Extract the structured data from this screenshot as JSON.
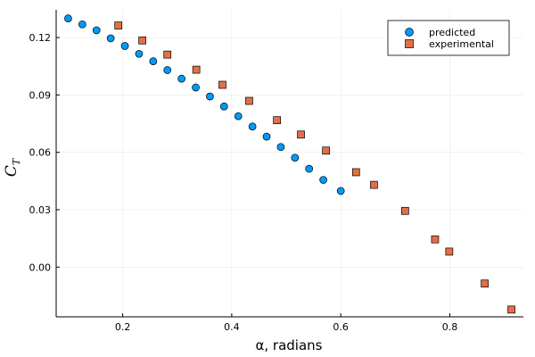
{
  "chart_data": {
    "type": "scatter",
    "title": "",
    "xlabel": "α, radians",
    "ylabel": "C",
    "ylabel_subscript": "T",
    "xlim": [
      0.078,
      0.935
    ],
    "ylim": [
      -0.026,
      0.1345
    ],
    "xticks": [
      {
        "value": 0.2,
        "label": "0.2"
      },
      {
        "value": 0.4,
        "label": "0.4"
      },
      {
        "value": 0.6,
        "label": "0.6"
      },
      {
        "value": 0.8,
        "label": "0.8"
      }
    ],
    "yticks": [
      {
        "value": 0.0,
        "label": "0.00"
      },
      {
        "value": 0.03,
        "label": "0.03"
      },
      {
        "value": 0.06,
        "label": "0.06"
      },
      {
        "value": 0.09,
        "label": "0.09"
      },
      {
        "value": 0.12,
        "label": "0.12"
      }
    ],
    "grid": true,
    "legend_position": "top-right",
    "series": [
      {
        "name": "predicted",
        "marker": "circle",
        "color": "#009AFA",
        "x": [
          0.1,
          0.126,
          0.152,
          0.178,
          0.204,
          0.23,
          0.256,
          0.282,
          0.308,
          0.334,
          0.36,
          0.386,
          0.412,
          0.438,
          0.464,
          0.49,
          0.516,
          0.542,
          0.568,
          0.6
        ],
        "y": [
          0.13,
          0.1269,
          0.1238,
          0.1196,
          0.1156,
          0.1115,
          0.1076,
          0.103,
          0.0985,
          0.0939,
          0.0892,
          0.084,
          0.0789,
          0.0735,
          0.0682,
          0.0628,
          0.0572,
          0.0514,
          0.0456,
          0.0398
        ]
      },
      {
        "name": "experimental",
        "marker": "square",
        "color": "#E26F46",
        "x": [
          0.192,
          0.236,
          0.282,
          0.335,
          0.383,
          0.432,
          0.483,
          0.527,
          0.573,
          0.628,
          0.661,
          0.718,
          0.773,
          0.799,
          0.864,
          0.913
        ],
        "y": [
          0.1263,
          0.1185,
          0.1111,
          0.1032,
          0.0953,
          0.0869,
          0.0768,
          0.0693,
          0.0609,
          0.0496,
          0.043,
          0.0294,
          0.0145,
          0.0081,
          -0.0086,
          -0.0222
        ]
      }
    ]
  }
}
